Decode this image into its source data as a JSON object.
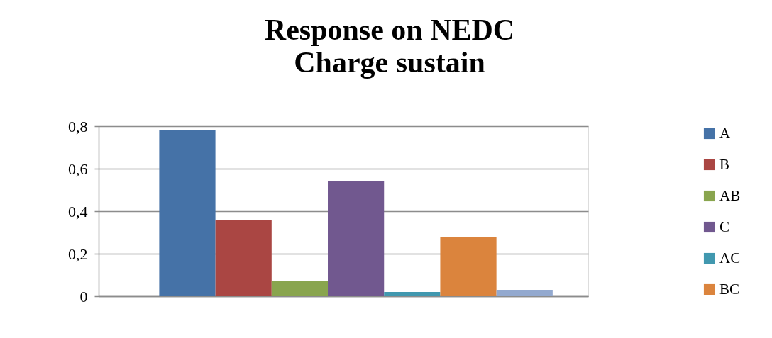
{
  "chart_data": {
    "type": "bar",
    "title": "Response on NEDC\nCharge sustain",
    "categories": [
      null
    ],
    "series": [
      {
        "name": "A",
        "color": "#4572a7",
        "values": [
          0.78
        ]
      },
      {
        "name": "B",
        "color": "#aa4643",
        "values": [
          0.36
        ]
      },
      {
        "name": "AB",
        "color": "#89a54e",
        "values": [
          0.07
        ]
      },
      {
        "name": "C",
        "color": "#71588f",
        "values": [
          0.54
        ]
      },
      {
        "name": "AC",
        "color": "#4198af",
        "values": [
          0.02
        ]
      },
      {
        "name": "BC",
        "color": "#db843d",
        "values": [
          0.28
        ]
      },
      {
        "color": "#93a9cf",
        "values": [
          0.03
        ]
      }
    ],
    "ylim": [
      0,
      0.8
    ],
    "yticks": [
      0,
      {
        "value": 0.2,
        "label": "0,2"
      },
      {
        "value": 0.4,
        "label": "0,4"
      },
      {
        "value": 0.6,
        "label": "0,6"
      },
      {
        "value": 0.8,
        "label": "0,8"
      }
    ],
    "grid": "y",
    "legend": "right",
    "tick_labels": "y"
  }
}
